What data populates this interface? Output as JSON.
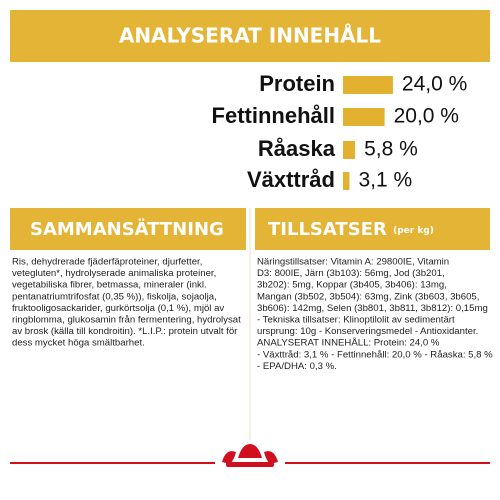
{
  "chart_data": {
    "type": "bar",
    "title": "ANALYSERAT INNEHÅLL",
    "color": "#e2b12f",
    "categories": [
      "Protein",
      "Fettinnehåll",
      "Råaska",
      "Växttråd"
    ],
    "values": [
      24.0,
      20.0,
      5.8,
      3.1
    ],
    "value_labels": [
      "24,0 %",
      "20,0 %",
      "5,8 %",
      "3,1 %"
    ]
  },
  "composition": {
    "title": "SAMMANSÄTTNING",
    "lines": [
      "Ris, dehydrerade fjäderfäproteiner, djurfetter,",
      "vetegluten*, hydrolyserade animaliska proteiner,",
      "vegetabiliska fibrer, betmassa, mineraler (inkl.",
      "pentanatriumtrifosfat (0,35 %)), fiskolja, sojaolja,",
      "fruktooligosackarider, gurkörtsolja (0,1 %), mjöl av",
      "ringblomma, glukosamin från fermentering, hydrolysat",
      "av brosk (källa till kondroitin). *L.I.P.: protein utvalt för",
      "dess mycket höga smältbarhet."
    ]
  },
  "additives": {
    "title": "TILLSATSER",
    "subtitle": "(per kg)",
    "lines": [
      "Näringstillsatser: Vitamin A: 29800IE, Vitamin",
      "D3: 800IE, Järn (3b103): 56mg, Jod (3b201,",
      "3b202): 5mg, Koppar (3b405, 3b406): 13mg,",
      "Mangan (3b502, 3b504): 63mg, Zink (3b603, 3b605,",
      "3b606): 142mg, Selen (3b801, 3b811, 3b812): 0,15mg",
      "- Tekniska tillsatser: Klinoptilolit av sedimentärt",
      "ursprung: 10g - Konserveringsmedel - Antioxidanter.",
      "ANALYSERAT INNEHÅLL: Protein: 24,0 %",
      "- Växttråd: 3,1 % - Fettinnehåll: 20,0 % - Råaska: 5,8 %",
      "- EPA/DHA: 0,3 %."
    ]
  }
}
